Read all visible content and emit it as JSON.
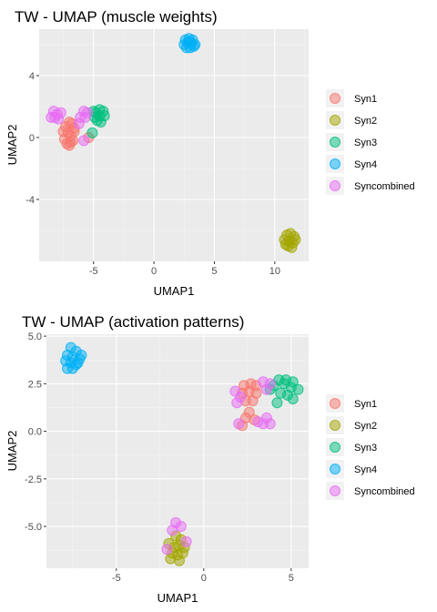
{
  "colors": {
    "Syn1": "#F8766D",
    "Syn2": "#A3A500",
    "Syn3": "#00BF7D",
    "Syn4": "#00B0F6",
    "Syncombined": "#E76BF3"
  },
  "chart_data": [
    {
      "type": "scatter",
      "title": "TW - UMAP (muscle weights)",
      "xlabel": "UMAP1",
      "ylabel": "UMAP2",
      "xlim": [
        -9.5,
        12.8
      ],
      "ylim": [
        -8.0,
        7.0
      ],
      "xticks": [
        -5,
        0,
        5,
        10
      ],
      "yticks": [
        -4,
        0,
        4
      ],
      "grid": true,
      "legend_position": "right",
      "series": [
        {
          "name": "Syn1",
          "points": [
            [
              -7.3,
              0.7
            ],
            [
              -7.0,
              1.0
            ],
            [
              -6.8,
              0.9
            ],
            [
              -6.6,
              0.6
            ],
            [
              -7.5,
              0.4
            ],
            [
              -7.1,
              0.3
            ],
            [
              -6.9,
              0.1
            ],
            [
              -7.4,
              -0.1
            ],
            [
              -6.9,
              -0.3
            ],
            [
              -7.2,
              -0.4
            ],
            [
              -6.7,
              -0.2
            ],
            [
              -6.6,
              0.4
            ],
            [
              -5.4,
              0.0
            ],
            [
              -7.0,
              -0.5
            ]
          ]
        },
        {
          "name": "Syn2",
          "points": [
            [
              11.0,
              -6.3
            ],
            [
              11.3,
              -6.2
            ],
            [
              11.6,
              -6.4
            ],
            [
              10.8,
              -6.6
            ],
            [
              11.2,
              -6.7
            ],
            [
              11.5,
              -6.8
            ],
            [
              11.1,
              -7.0
            ],
            [
              11.4,
              -7.1
            ],
            [
              10.9,
              -6.9
            ],
            [
              11.7,
              -6.6
            ]
          ]
        },
        {
          "name": "Syn3",
          "points": [
            [
              -4.8,
              1.6
            ],
            [
              -4.5,
              1.8
            ],
            [
              -4.2,
              1.7
            ],
            [
              -4.9,
              1.3
            ],
            [
              -4.5,
              1.4
            ],
            [
              -4.1,
              1.4
            ],
            [
              -4.7,
              1.1
            ],
            [
              -4.4,
              1.0
            ],
            [
              -5.0,
              1.7
            ],
            [
              -5.1,
              0.3
            ]
          ]
        },
        {
          "name": "Syn4",
          "points": [
            [
              2.6,
              6.3
            ],
            [
              2.9,
              6.4
            ],
            [
              3.2,
              6.3
            ],
            [
              2.5,
              6.0
            ],
            [
              2.8,
              6.1
            ],
            [
              3.1,
              6.1
            ],
            [
              3.4,
              6.0
            ],
            [
              2.7,
              5.8
            ],
            [
              3.0,
              5.8
            ],
            [
              3.3,
              5.9
            ],
            [
              2.9,
              6.2
            ]
          ]
        },
        {
          "name": "Syncombined",
          "points": [
            [
              -8.3,
              1.7
            ],
            [
              -8.0,
              1.5
            ],
            [
              -7.7,
              1.6
            ],
            [
              -8.5,
              1.3
            ],
            [
              -8.2,
              1.3
            ],
            [
              -7.9,
              1.2
            ],
            [
              -5.8,
              1.7
            ],
            [
              -5.5,
              1.6
            ],
            [
              -6.1,
              1.3
            ],
            [
              -5.7,
              1.3
            ],
            [
              -6.2,
              0.9
            ],
            [
              -5.8,
              -0.2
            ]
          ]
        }
      ]
    },
    {
      "type": "scatter",
      "title": "TW - UMAP (activation patterns)",
      "xlabel": "UMAP1",
      "ylabel": "UMAP2",
      "xlim": [
        -9.0,
        6.0
      ],
      "ylim": [
        -7.2,
        5.1
      ],
      "xticks": [
        -5,
        0,
        5
      ],
      "yticks": [
        -5.0,
        -2.5,
        0.0,
        2.5,
        5.0
      ],
      "grid": true,
      "legend_position": "right",
      "series": [
        {
          "name": "Syn1",
          "points": [
            [
              2.3,
              2.4
            ],
            [
              2.7,
              2.5
            ],
            [
              3.0,
              2.4
            ],
            [
              2.2,
              2.0
            ],
            [
              2.6,
              2.1
            ],
            [
              3.0,
              2.0
            ],
            [
              2.4,
              1.6
            ],
            [
              2.8,
              1.6
            ],
            [
              2.6,
              1.0
            ],
            [
              2.4,
              0.7
            ],
            [
              2.9,
              0.6
            ],
            [
              2.2,
              0.3
            ]
          ]
        },
        {
          "name": "Syn2",
          "points": [
            [
              -1.6,
              -5.5
            ],
            [
              -1.3,
              -5.7
            ],
            [
              -2.0,
              -5.9
            ],
            [
              -1.7,
              -6.1
            ],
            [
              -1.4,
              -6.0
            ],
            [
              -1.1,
              -6.1
            ],
            [
              -1.8,
              -6.4
            ],
            [
              -1.5,
              -6.5
            ],
            [
              -1.2,
              -6.4
            ],
            [
              -1.9,
              -6.7
            ],
            [
              -1.4,
              -6.8
            ]
          ]
        },
        {
          "name": "Syn3",
          "points": [
            [
              4.3,
              2.7
            ],
            [
              4.7,
              2.7
            ],
            [
              5.1,
              2.6
            ],
            [
              4.0,
              2.4
            ],
            [
              4.6,
              2.5
            ],
            [
              5.0,
              2.3
            ],
            [
              5.4,
              2.2
            ],
            [
              4.4,
              2.0
            ],
            [
              4.8,
              1.9
            ],
            [
              5.1,
              1.7
            ],
            [
              4.2,
              1.5
            ],
            [
              3.8,
              2.2
            ]
          ]
        },
        {
          "name": "Syn4",
          "points": [
            [
              -7.6,
              4.4
            ],
            [
              -7.3,
              4.2
            ],
            [
              -7.8,
              4.0
            ],
            [
              -7.5,
              3.9
            ],
            [
              -7.1,
              3.8
            ],
            [
              -7.9,
              3.7
            ],
            [
              -7.6,
              3.6
            ],
            [
              -7.3,
              3.5
            ],
            [
              -7.8,
              3.3
            ],
            [
              -7.5,
              3.3
            ],
            [
              -7.2,
              3.6
            ],
            [
              -7.0,
              4.0
            ]
          ]
        },
        {
          "name": "Syncombined",
          "points": [
            [
              3.4,
              2.6
            ],
            [
              3.8,
              2.5
            ],
            [
              3.6,
              2.2
            ],
            [
              1.8,
              2.1
            ],
            [
              2.1,
              1.8
            ],
            [
              1.9,
              1.5
            ],
            [
              3.1,
              0.5
            ],
            [
              3.4,
              0.4
            ],
            [
              3.8,
              0.4
            ],
            [
              2.0,
              0.4
            ],
            [
              3.6,
              0.7
            ],
            [
              -1.6,
              -4.8
            ],
            [
              -1.8,
              -5.2
            ],
            [
              -1.3,
              -5.0
            ],
            [
              -1.0,
              -5.8
            ],
            [
              -2.1,
              -6.2
            ]
          ]
        }
      ]
    }
  ]
}
